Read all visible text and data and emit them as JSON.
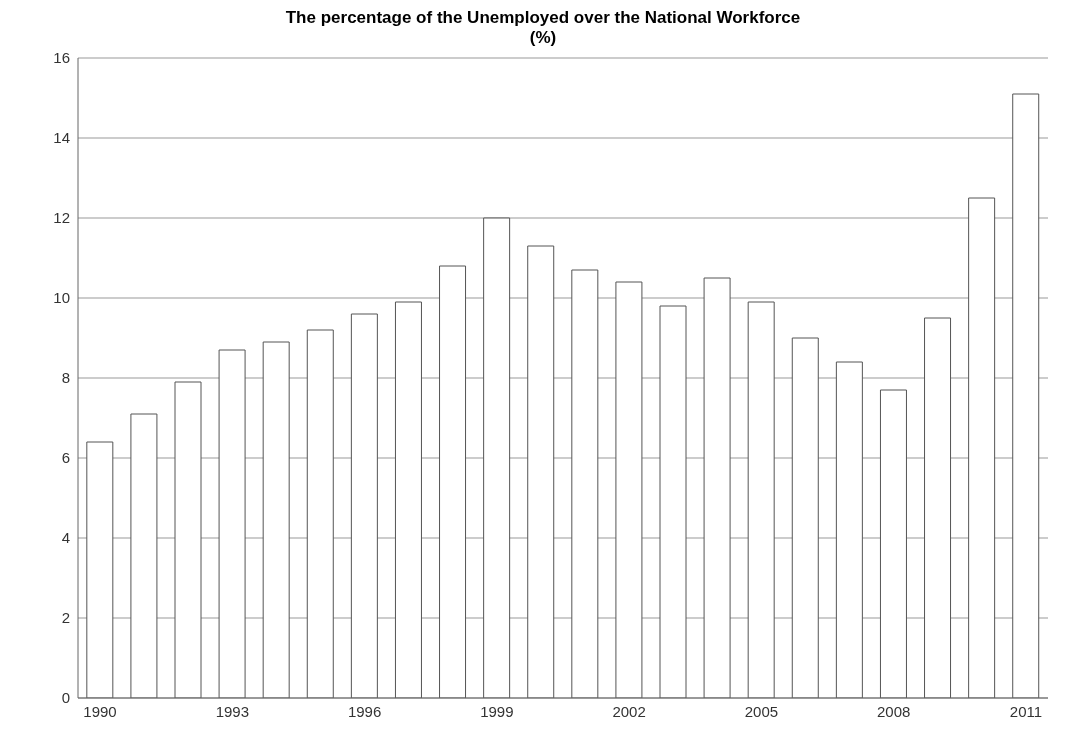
{
  "chart_data": {
    "type": "bar",
    "title": "The percentage of the Unemployed over the National Workforce",
    "subtitle": "(%)",
    "categories": [
      "1990",
      null,
      null,
      "1993",
      null,
      null,
      "1996",
      null,
      null,
      "1999",
      null,
      null,
      "2002",
      null,
      null,
      "2005",
      null,
      null,
      "2008",
      null,
      null,
      "2011"
    ],
    "values": [
      6.4,
      7.1,
      7.9,
      8.7,
      8.9,
      9.2,
      9.6,
      9.9,
      10.8,
      12.0,
      11.3,
      10.7,
      10.4,
      9.8,
      10.5,
      9.9,
      9.0,
      8.4,
      7.7,
      9.5,
      12.5,
      15.1
    ],
    "color": "#ffffff",
    "ylim": [
      0,
      16
    ],
    "yticks": [
      0,
      2,
      4,
      6,
      8,
      10,
      12,
      14,
      16
    ],
    "grid": "y",
    "legend": false
  }
}
